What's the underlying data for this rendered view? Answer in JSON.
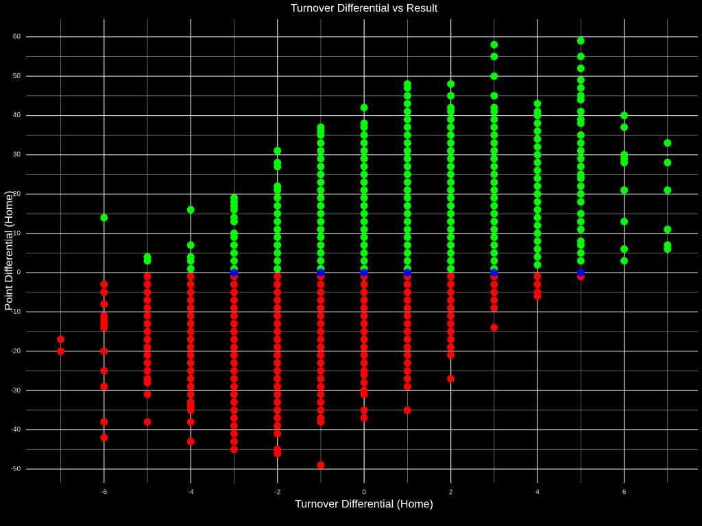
{
  "chart_data": {
    "type": "scatter",
    "title": "Turnover Differential vs Result",
    "x_label": "Turnover Differential (Home)",
    "y_label": "Point Differential (Home)",
    "xlim": [
      -7.8,
      7.7
    ],
    "ylim": [
      -53.5,
      64.5
    ],
    "xticks": [
      -6,
      -4,
      -2,
      0,
      2,
      4,
      6
    ],
    "xminor": [
      -7,
      -5,
      -3,
      -1,
      1,
      3,
      5,
      7
    ],
    "yticks": [
      -50,
      -40,
      -30,
      -20,
      -10,
      0,
      10,
      20,
      30,
      40,
      50,
      60
    ],
    "yminor": [
      -45,
      -35,
      -25,
      -15,
      -5,
      5,
      15,
      25,
      35,
      45,
      55
    ],
    "grid": true,
    "background": "#000000",
    "series": [
      {
        "color": "#00ff00",
        "x": [
          -6,
          -5,
          -5,
          -4,
          -4,
          -4,
          -4,
          -4,
          -3,
          -3,
          -3,
          -3,
          -3,
          -3,
          -3,
          -3,
          -3,
          -3,
          -3,
          -3,
          -2,
          -2,
          -2,
          -2,
          -2,
          -2,
          -2,
          -2,
          -2,
          -2,
          -2,
          -2,
          -2,
          -2,
          -2,
          -1,
          -1,
          -1,
          -1,
          -1,
          -1,
          -1,
          -1,
          -1,
          -1,
          -1,
          -1,
          -1,
          -1,
          -1,
          -1,
          -1,
          -1,
          -1,
          -1,
          0,
          0,
          0,
          0,
          0,
          0,
          0,
          0,
          0,
          0,
          0,
          0,
          0,
          0,
          0,
          0,
          0,
          0,
          0,
          0,
          0,
          1,
          1,
          1,
          1,
          1,
          1,
          1,
          1,
          1,
          1,
          1,
          1,
          1,
          1,
          1,
          1,
          1,
          1,
          1,
          1,
          1,
          1,
          1,
          1,
          1,
          2,
          2,
          2,
          2,
          2,
          2,
          2,
          2,
          2,
          2,
          2,
          2,
          2,
          2,
          2,
          2,
          2,
          2,
          2,
          2,
          2,
          2,
          2,
          2,
          3,
          3,
          3,
          3,
          3,
          3,
          3,
          3,
          3,
          3,
          3,
          3,
          3,
          3,
          3,
          3,
          3,
          3,
          3,
          3,
          3,
          3,
          3,
          3,
          3,
          3,
          4,
          4,
          4,
          4,
          4,
          4,
          4,
          4,
          4,
          4,
          4,
          4,
          4,
          4,
          4,
          4,
          4,
          4,
          4,
          4,
          4,
          4,
          5,
          5,
          5,
          5,
          5,
          5,
          5,
          5,
          5,
          5,
          5,
          5,
          5,
          5,
          5,
          5,
          5,
          5,
          5,
          5,
          5,
          5,
          5,
          5,
          5,
          5,
          5,
          6,
          6,
          6,
          6,
          6,
          6,
          6,
          6,
          6,
          7,
          7,
          7,
          7,
          7,
          7
        ],
        "values": [
          14,
          3,
          4,
          1,
          3,
          4,
          7,
          16,
          1,
          3,
          5,
          7,
          9,
          10,
          13,
          14,
          16,
          17,
          18,
          19,
          1,
          3,
          5,
          7,
          9,
          11,
          13,
          15,
          17,
          19,
          21,
          22,
          27,
          28,
          31,
          1,
          3,
          5,
          7,
          9,
          11,
          13,
          15,
          17,
          19,
          21,
          23,
          25,
          27,
          29,
          31,
          33,
          35,
          36,
          37,
          1,
          3,
          5,
          7,
          9,
          11,
          13,
          15,
          17,
          19,
          21,
          23,
          25,
          27,
          29,
          31,
          33,
          35,
          37,
          38,
          42,
          1,
          3,
          5,
          7,
          9,
          11,
          13,
          15,
          17,
          19,
          21,
          23,
          25,
          27,
          29,
          31,
          33,
          35,
          37,
          39,
          41,
          43,
          45,
          47,
          48,
          1,
          3,
          5,
          7,
          9,
          11,
          13,
          15,
          17,
          19,
          21,
          23,
          25,
          27,
          29,
          31,
          33,
          35,
          37,
          39,
          41,
          42,
          45,
          48,
          1,
          3,
          5,
          7,
          9,
          11,
          13,
          15,
          17,
          19,
          21,
          23,
          25,
          27,
          29,
          31,
          33,
          35,
          37,
          39,
          41,
          42,
          45,
          50,
          55,
          58,
          2,
          4,
          6,
          8,
          10,
          12,
          14,
          16,
          18,
          20,
          22,
          24,
          26,
          28,
          30,
          32,
          34,
          36,
          38,
          40,
          41,
          43,
          3,
          5,
          7,
          8,
          11,
          13,
          15,
          18,
          20,
          22,
          24,
          25,
          27,
          29,
          31,
          33,
          35,
          38,
          39,
          41,
          44,
          45,
          47,
          49,
          52,
          55,
          59,
          3,
          6,
          13,
          21,
          28,
          29,
          30,
          37,
          40,
          6,
          7,
          11,
          21,
          28,
          33
        ]
      },
      {
        "color": "#ff0000",
        "x": [
          -7,
          -7,
          -6,
          -6,
          -6,
          -6,
          -6,
          -6,
          -6,
          -6,
          -6,
          -6,
          -6,
          -6,
          -5,
          -5,
          -5,
          -5,
          -5,
          -5,
          -5,
          -5,
          -5,
          -5,
          -5,
          -5,
          -5,
          -5,
          -5,
          -5,
          -5,
          -4,
          -4,
          -4,
          -4,
          -4,
          -4,
          -4,
          -4,
          -4,
          -4,
          -4,
          -4,
          -4,
          -4,
          -4,
          -4,
          -4,
          -4,
          -4,
          -4,
          -4,
          -3,
          -3,
          -3,
          -3,
          -3,
          -3,
          -3,
          -3,
          -3,
          -3,
          -3,
          -3,
          -3,
          -3,
          -3,
          -3,
          -3,
          -3,
          -3,
          -3,
          -3,
          -3,
          -3,
          -2,
          -2,
          -2,
          -2,
          -2,
          -2,
          -2,
          -2,
          -2,
          -2,
          -2,
          -2,
          -2,
          -2,
          -2,
          -2,
          -2,
          -2,
          -2,
          -2,
          -2,
          -2,
          -2,
          -1,
          -1,
          -1,
          -1,
          -1,
          -1,
          -1,
          -1,
          -1,
          -1,
          -1,
          -1,
          -1,
          -1,
          -1,
          -1,
          -1,
          -1,
          -1,
          -1,
          -1,
          0,
          0,
          0,
          0,
          0,
          0,
          0,
          0,
          0,
          0,
          0,
          0,
          0,
          0,
          0,
          0,
          0,
          0,
          0,
          1,
          1,
          1,
          1,
          1,
          1,
          1,
          1,
          1,
          1,
          1,
          1,
          1,
          1,
          1,
          1,
          2,
          2,
          2,
          2,
          2,
          2,
          2,
          2,
          2,
          2,
          2,
          2,
          3,
          3,
          3,
          3,
          3,
          3,
          4,
          4,
          4,
          4,
          5
        ],
        "values": [
          -17,
          -20,
          -3,
          -5,
          -8,
          -11,
          -12,
          -13,
          -14,
          -20,
          -25,
          -29,
          -38,
          -42,
          -1,
          -3,
          -5,
          -7,
          -9,
          -11,
          -13,
          -15,
          -17,
          -19,
          -21,
          -23,
          -25,
          -27,
          -28,
          -31,
          -38,
          -1,
          -3,
          -5,
          -7,
          -9,
          -11,
          -13,
          -15,
          -17,
          -19,
          -21,
          -23,
          -25,
          -27,
          -29,
          -31,
          -33,
          -34,
          -35,
          -38,
          -43,
          -1,
          -3,
          -5,
          -7,
          -9,
          -11,
          -13,
          -15,
          -17,
          -19,
          -21,
          -23,
          -25,
          -27,
          -29,
          -31,
          -33,
          -35,
          -37,
          -39,
          -41,
          -43,
          -45,
          -1,
          -3,
          -5,
          -7,
          -9,
          -11,
          -13,
          -15,
          -17,
          -19,
          -21,
          -23,
          -25,
          -27,
          -29,
          -31,
          -33,
          -35,
          -37,
          -39,
          -41,
          -45,
          -46,
          -1,
          -3,
          -5,
          -7,
          -9,
          -11,
          -13,
          -15,
          -17,
          -19,
          -21,
          -23,
          -25,
          -27,
          -29,
          -31,
          -33,
          -35,
          -37,
          -38,
          -49,
          -1,
          -3,
          -5,
          -7,
          -9,
          -11,
          -13,
          -15,
          -17,
          -19,
          -21,
          -23,
          -25,
          -26,
          -28,
          -30,
          -31,
          -35,
          -37,
          -1,
          -3,
          -5,
          -7,
          -9,
          -11,
          -13,
          -15,
          -17,
          -19,
          -21,
          -23,
          -25,
          -27,
          -29,
          -35,
          -1,
          -3,
          -5,
          -7,
          -9,
          -11,
          -13,
          -15,
          -17,
          -19,
          -21,
          -27,
          -1,
          -3,
          -5,
          -7,
          -9,
          -14,
          -1,
          -3,
          -5,
          -6,
          -1
        ]
      },
      {
        "color": "#0000ff",
        "x": [
          -3,
          -1,
          0,
          1,
          3,
          5
        ],
        "values": [
          0,
          0,
          0,
          0,
          0,
          0
        ]
      }
    ]
  }
}
